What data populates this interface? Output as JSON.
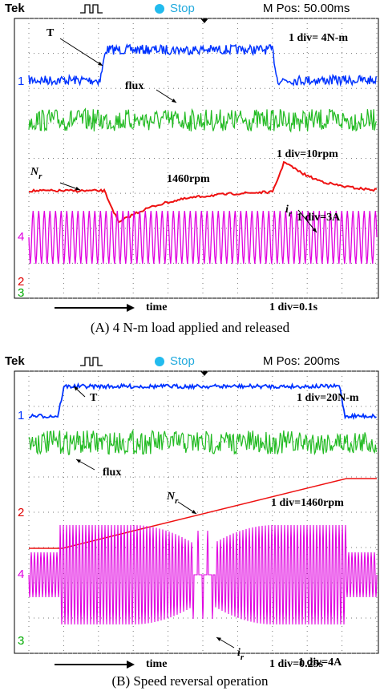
{
  "panels": [
    {
      "header": {
        "brand": "Tek",
        "status": "Stop",
        "position": "M Pos: 50.00ms"
      },
      "channels": [
        "1",
        "4",
        "2",
        "3"
      ],
      "annotations": [
        {
          "main": "T"
        },
        {
          "main": "1 div= 4N-m"
        },
        {
          "main": "flux"
        },
        {
          "main": "1 div=10rpm"
        },
        {
          "main": "N",
          "sub": "r"
        },
        {
          "main": "1460rpm"
        },
        {
          "main": "i",
          "sub": "r"
        },
        {
          "main": "1 div=3A"
        }
      ],
      "time_label": "time",
      "time_scale": "1 div=0.1s",
      "caption": "(A) 4 N-m load applied and released"
    },
    {
      "header": {
        "brand": "Tek",
        "status": "Stop",
        "position": "M Pos: 200ms"
      },
      "channels": [
        "1",
        "2",
        "4",
        "3"
      ],
      "annotations": [
        {
          "main": "T"
        },
        {
          "main": "1 div=20N-m"
        },
        {
          "main": "flux"
        },
        {
          "main": "N",
          "sub": "r"
        },
        {
          "main": "1 div=1460rpm"
        },
        {
          "main": "i",
          "sub": "r"
        },
        {
          "main": "1 div=4A"
        }
      ],
      "time_label": "time",
      "time_scale": "1 div=0.25s",
      "caption": "(B) Speed reversal operation"
    }
  ]
}
